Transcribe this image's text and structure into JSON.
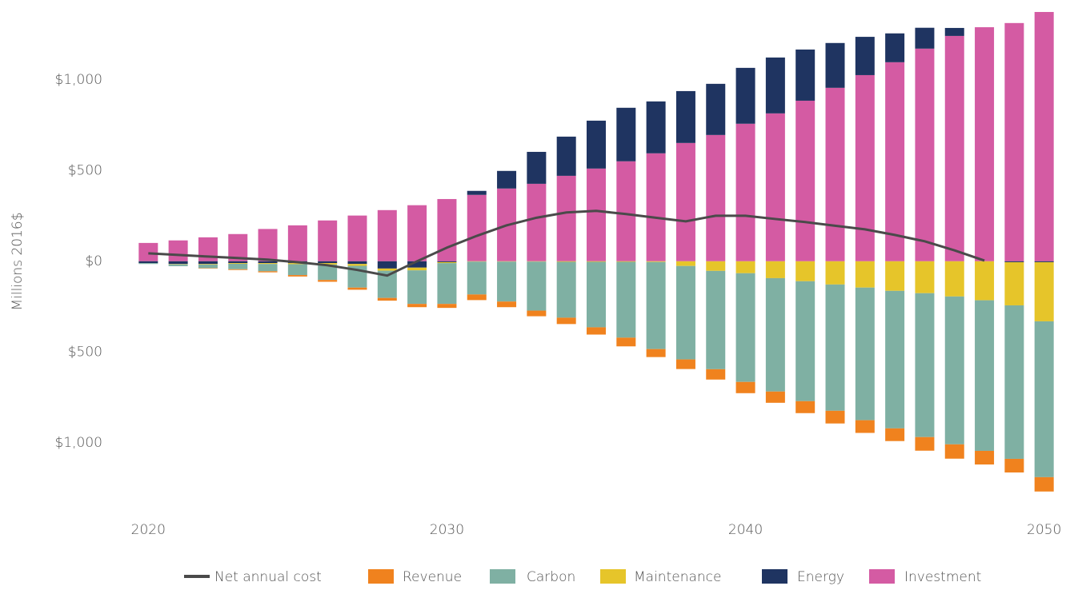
{
  "chart_data": {
    "type": "bar",
    "stacked": true,
    "y_label": "Millions 2016$",
    "x": [
      2020,
      2021,
      2022,
      2023,
      2024,
      2025,
      2026,
      2027,
      2028,
      2029,
      2030,
      2031,
      2032,
      2033,
      2034,
      2035,
      2036,
      2037,
      2038,
      2039,
      2040,
      2041,
      2042,
      2043,
      2044,
      2045,
      2046,
      2047,
      2048,
      2049,
      2050
    ],
    "xlim": [
      2019,
      2051
    ],
    "xticks": [
      2020,
      2030,
      2040,
      2050
    ],
    "ylim": [
      -1380,
      1440
    ],
    "yticks": [
      {
        "value": 1000,
        "label": "$1,000"
      },
      {
        "value": 500,
        "label": "$500"
      },
      {
        "value": 0,
        "label": "$0"
      },
      {
        "value": -500,
        "label": "$500"
      },
      {
        "value": -1000,
        "label": "$1,000"
      }
    ],
    "grid": false,
    "legend": "bottom",
    "series": [
      {
        "name": "Net annual cost",
        "type": "line",
        "color": "#4a4a4a",
        "values": [
          44,
          35,
          26,
          18,
          9,
          -5,
          -22,
          -48,
          -79,
          0,
          75,
          140,
          198,
          240,
          269,
          278,
          260,
          240,
          220,
          251,
          251,
          233,
          216,
          196,
          176,
          145,
          110,
          60,
          4,
          null,
          null
        ]
      },
      {
        "name": "Revenue",
        "color": "#f0821e",
        "values": [
          0,
          0,
          -2,
          -4,
          -6,
          -8,
          -10,
          -12,
          -15,
          -18,
          -22,
          -31,
          -31,
          -31,
          -35,
          -40,
          -48,
          -44,
          -53,
          -57,
          -62,
          -62,
          -66,
          -70,
          -70,
          -70,
          -75,
          -79,
          -75,
          -75,
          -79
        ]
      },
      {
        "name": "Carbon",
        "color": "#7fb0a3",
        "values": [
          -5,
          -10,
          -20,
          -30,
          -40,
          -60,
          -85,
          -120,
          -150,
          -185,
          -225,
          -181,
          -220,
          -270,
          -308,
          -361,
          -418,
          -480,
          -515,
          -542,
          -599,
          -625,
          -661,
          -696,
          -731,
          -758,
          -793,
          -815,
          -830,
          -846,
          -859
        ]
      },
      {
        "name": "Maintenance",
        "color": "#e6c52a",
        "values": [
          0,
          -2,
          -3,
          -4,
          -5,
          -6,
          -8,
          -10,
          -12,
          -15,
          -5,
          -2,
          -2,
          -2,
          -3,
          -3,
          -3,
          -4,
          -26,
          -53,
          -66,
          -93,
          -110,
          -128,
          -145,
          -163,
          -176,
          -194,
          -215,
          -238,
          -326
        ]
      },
      {
        "name": "Energy",
        "color": "#1f3461",
        "values": [
          -10,
          -15,
          -15,
          -10,
          -10,
          -10,
          -10,
          -15,
          -40,
          -35,
          -5,
          22,
          97,
          176,
          216,
          264,
          295,
          286,
          286,
          282,
          308,
          308,
          282,
          247,
          211,
          159,
          115,
          44,
          0,
          -5,
          -5
        ]
      },
      {
        "name": "Investment",
        "color": "#d45ba3",
        "values": [
          101,
          115,
          132,
          150,
          178,
          198,
          225,
          252,
          282,
          309,
          343,
          366,
          401,
          427,
          471,
          511,
          551,
          595,
          652,
          696,
          758,
          815,
          885,
          956,
          1026,
          1097,
          1172,
          1242,
          1290,
          1313,
          1374
        ]
      }
    ]
  }
}
